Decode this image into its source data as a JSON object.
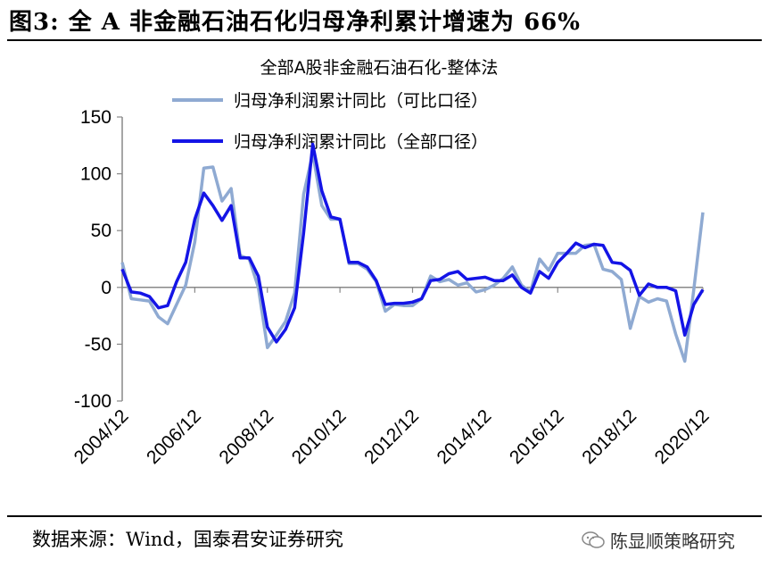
{
  "figure": {
    "title": "图3: 全 A 非金融石油石化归母净利累计增速为 66%",
    "source": "数据来源：Wind，国泰君安证券研究",
    "watermark": "陈显顺策略研究",
    "watermark_icon": "wechat-icon"
  },
  "chart_data": {
    "type": "line",
    "title": "全部A股非金融石油石化-整体法",
    "xlabel": "",
    "ylabel": "",
    "ylim": [
      -100,
      150
    ],
    "yticks": [
      150,
      100,
      50,
      0,
      -50,
      -100
    ],
    "ytick_labels": [
      "150",
      "100",
      "50",
      "0",
      "-50",
      "-100"
    ],
    "xtick_labels": [
      "2004/12",
      "2006/12",
      "2008/12",
      "2010/12",
      "2012/12",
      "2014/12",
      "2016/12",
      "2018/12",
      "2020/12"
    ],
    "grid": false,
    "legend_position": "top",
    "x": [
      "2004/12",
      "2005/03",
      "2005/06",
      "2005/09",
      "2005/12",
      "2006/03",
      "2006/06",
      "2006/09",
      "2006/12",
      "2007/03",
      "2007/06",
      "2007/09",
      "2007/12",
      "2008/03",
      "2008/06",
      "2008/09",
      "2008/12",
      "2009/03",
      "2009/06",
      "2009/09",
      "2009/12",
      "2010/03",
      "2010/06",
      "2010/09",
      "2010/12",
      "2011/03",
      "2011/06",
      "2011/09",
      "2011/12",
      "2012/03",
      "2012/06",
      "2012/09",
      "2012/12",
      "2013/03",
      "2013/06",
      "2013/09",
      "2013/12",
      "2014/03",
      "2014/06",
      "2014/09",
      "2014/12",
      "2015/03",
      "2015/06",
      "2015/09",
      "2015/12",
      "2016/03",
      "2016/06",
      "2016/09",
      "2016/12",
      "2017/03",
      "2017/06",
      "2017/09",
      "2017/12",
      "2018/03",
      "2018/06",
      "2018/09",
      "2018/12",
      "2019/03",
      "2019/06",
      "2019/09",
      "2019/12",
      "2020/03",
      "2020/06",
      "2020/09",
      "2020/12"
    ],
    "series": [
      {
        "name": "归母净利润累计同比（可比口径）",
        "color": "#8FAAD2",
        "values": [
          22,
          -10,
          -11,
          -12,
          -26,
          -32,
          -15,
          2,
          40,
          105,
          106,
          76,
          87,
          28,
          25,
          0,
          -53,
          -42,
          -30,
          -5,
          82,
          118,
          72,
          60,
          60,
          21,
          21,
          16,
          5,
          -21,
          -15,
          -16,
          -16,
          -10,
          10,
          5,
          7,
          2,
          4,
          -4,
          -2,
          2,
          8,
          18,
          2,
          -4,
          25,
          15,
          30,
          30,
          30,
          37,
          38,
          16,
          14,
          7,
          -36,
          -8,
          -13,
          -10,
          -12,
          -41,
          -65,
          -2,
          66
        ]
      },
      {
        "name": "归母净利润累计同比（全部口径）",
        "color": "#1414E6",
        "values": [
          16,
          -4,
          -5,
          -8,
          -18,
          -16,
          5,
          22,
          60,
          83,
          72,
          59,
          72,
          26,
          26,
          10,
          -35,
          -48,
          -37,
          -18,
          48,
          126,
          85,
          62,
          60,
          22,
          22,
          18,
          6,
          -15,
          -14,
          -14,
          -13,
          -10,
          6,
          7,
          12,
          14,
          7,
          8,
          9,
          6,
          6,
          11,
          0,
          -5,
          14,
          8,
          22,
          30,
          39,
          35,
          38,
          37,
          22,
          21,
          15,
          -7,
          3,
          0,
          0,
          -3,
          -42,
          -15,
          -2
        ]
      }
    ]
  }
}
